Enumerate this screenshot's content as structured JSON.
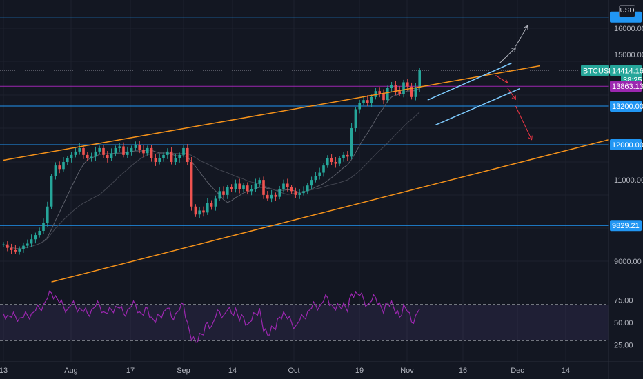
{
  "currency_label": "USD",
  "chart_data": {
    "type": "candlestick",
    "symbol": "BTCUSD",
    "price_axis": {
      "ticks": [
        "16000.00",
        "15000.00",
        "11000.00",
        "9000.00"
      ],
      "ylim": [
        8400,
        16600
      ]
    },
    "time_axis": {
      "ticks": [
        "13",
        "Aug",
        "17",
        "Sep",
        "14",
        "Oct",
        "19",
        "Nov",
        "16",
        "Dec",
        "14"
      ]
    },
    "price_tags": [
      {
        "label": "BTCUSD",
        "value": "14414.16",
        "color": "#26a69a"
      },
      {
        "label": "",
        "value": "38:25",
        "color": "#26a69a"
      },
      {
        "label": "",
        "value": "13863.13",
        "color": "#9c27b0"
      },
      {
        "label": "",
        "value": "13200.00",
        "color": "#2196f3"
      },
      {
        "label": "",
        "value": "12000.00",
        "color": "#2196f3"
      },
      {
        "label": "",
        "value": "9829.21",
        "color": "#2196f3"
      }
    ],
    "horizontal_levels": [
      {
        "price": 16450,
        "color": "#2196f3"
      },
      {
        "price": 13863.13,
        "color": "#9c27b0"
      },
      {
        "price": 13200,
        "color": "#2196f3"
      },
      {
        "price": 12000,
        "color": "#2196f3"
      },
      {
        "price": 9829.21,
        "color": "#2196f3"
      }
    ],
    "current_price": 14414.16,
    "close_series": [
      9380,
      9300,
      9250,
      9220,
      9280,
      9350,
      9400,
      9500,
      9600,
      9700,
      9900,
      10300,
      11100,
      11400,
      11300,
      11500,
      11600,
      11700,
      11800,
      11900,
      11700,
      11600,
      11650,
      11800,
      11900,
      11700,
      11600,
      11750,
      11900,
      11950,
      11700,
      11800,
      11900,
      12000,
      11850,
      11750,
      11900,
      11600,
      11500,
      11600,
      11700,
      11800,
      11500,
      11600,
      11700,
      11900,
      11500,
      10300,
      10100,
      10200,
      10150,
      10400,
      10300,
      10500,
      10700,
      10600,
      10800,
      10750,
      10900,
      10750,
      10850,
      10700,
      10750,
      10900,
      11000,
      10600,
      10500,
      10600,
      10550,
      10750,
      10900,
      10800,
      10700,
      10600,
      10650,
      10700,
      10850,
      11000,
      11100,
      11200,
      11400,
      11600,
      11500,
      11450,
      11600,
      11700,
      11650,
      12500,
      13100,
      13300,
      13400,
      13300,
      13500,
      13700,
      13600,
      13400,
      13800,
      13900,
      13700,
      13600,
      14000,
      13850,
      13500,
      13800,
      14414.16
    ],
    "rsi": {
      "series": [
        60,
        58,
        56,
        57,
        55,
        56,
        58,
        60,
        63,
        66,
        70,
        77,
        83,
        80,
        72,
        68,
        65,
        70,
        68,
        66,
        62,
        60,
        64,
        68,
        70,
        62,
        60,
        64,
        68,
        66,
        60,
        64,
        68,
        70,
        62,
        58,
        66,
        56,
        50,
        58,
        62,
        66,
        56,
        60,
        64,
        70,
        50,
        30,
        28,
        38,
        36,
        50,
        46,
        56,
        62,
        58,
        64,
        60,
        66,
        52,
        56,
        48,
        52,
        60,
        66,
        40,
        36,
        46,
        42,
        56,
        62,
        54,
        50,
        46,
        52,
        56,
        62,
        66,
        70,
        68,
        74,
        78,
        70,
        64,
        68,
        72,
        62,
        82,
        84,
        80,
        76,
        70,
        74,
        78,
        72,
        60,
        72,
        74,
        60,
        56,
        70,
        62,
        50,
        58,
        65
      ],
      "ylim": [
        15,
        90
      ],
      "levels": [
        70,
        30
      ],
      "ticks": [
        "75.00",
        "50.00",
        "25.00"
      ],
      "color": "#9c27b0"
    },
    "trendlines": [
      {
        "name": "upper-channel",
        "color": "#f7931a",
        "p1": [
          0,
          11550
        ],
        "p2": [
          134,
          14580
        ]
      },
      {
        "name": "lower-channel",
        "color": "#f7931a",
        "p1": [
          12,
          8550
        ],
        "p2": [
          175,
          12900
        ]
      },
      {
        "name": "rising-wedge-top",
        "color": "#7ecbff",
        "p1": [
          106,
          13400
        ],
        "p2": [
          127,
          14680
        ]
      },
      {
        "name": "rising-wedge-bottom",
        "color": "#7ecbff",
        "p1": [
          108,
          12600
        ],
        "p2": [
          129,
          13780
        ]
      }
    ],
    "projections": [
      {
        "color": "#b2b5be",
        "from": [
          124,
          14680
        ],
        "to": [
          128,
          15250
        ]
      },
      {
        "color": "#b2b5be",
        "from": [
          128,
          15300
        ],
        "to": [
          131,
          16100
        ]
      },
      {
        "color": "#f23645",
        "from": [
          123,
          14240
        ],
        "to": [
          126,
          13980
        ]
      },
      {
        "color": "#f23645",
        "from": [
          126,
          13800
        ],
        "to": [
          128,
          13420
        ]
      },
      {
        "color": "#f23645",
        "from": [
          128,
          13200
        ],
        "to": [
          132,
          12150
        ]
      }
    ]
  }
}
